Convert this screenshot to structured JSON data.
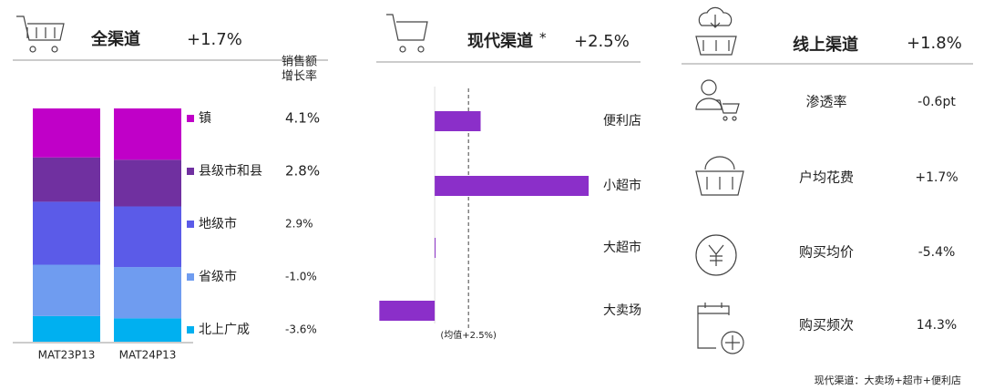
{
  "chart_data": [
    {
      "type": "stacked-bar",
      "title": "全渠道",
      "title_value": "+1.7%",
      "categories": [
        "MAT23P13",
        "MAT24P13"
      ],
      "series": [
        {
          "name": "镇",
          "color": "#c000c8",
          "values": [
            21,
            22
          ]
        },
        {
          "name": "县级市和县",
          "color": "#7030a0",
          "values": [
            19,
            20
          ]
        },
        {
          "name": "地级市",
          "color": "#5b5be8",
          "values": [
            27,
            26
          ]
        },
        {
          "name": "省级市",
          "color": "#6f9cf0",
          "values": [
            22,
            22
          ]
        },
        {
          "name": "北上广成",
          "color": "#00b0f0",
          "values": [
            11,
            10
          ]
        }
      ],
      "ylim": [
        0,
        100
      ],
      "growth": {
        "header": [
          "销售额",
          "增长率"
        ],
        "values": [
          4.1,
          2.8,
          2.9,
          -1.0,
          -3.6
        ],
        "value_labels": [
          "4.1%",
          "2.8%",
          "2.9%",
          "-1.0%",
          "-3.6%"
        ]
      }
    },
    {
      "type": "barh",
      "title": "现代渠道",
      "title_note": "*",
      "title_value": "+2.5%",
      "categories": [
        "便利店",
        "小超市",
        "大超市",
        "大卖场"
      ],
      "values": [
        3.4,
        11.4,
        0,
        -4.1
      ],
      "color": "#8b2fc9",
      "xlim": [
        -5,
        12
      ],
      "reference": {
        "value": 2.5,
        "label": "(均值+2.5%)"
      }
    }
  ],
  "online": {
    "title": "线上渠道",
    "value": "+1.8%",
    "rows": [
      {
        "label": "渗透率",
        "value": "-0.6pt"
      },
      {
        "label": "户均花费",
        "value": "+1.7%"
      },
      {
        "label": "购买均价",
        "value": "-5.4%"
      },
      {
        "label": "购买频次",
        "value": "14.3%"
      }
    ]
  },
  "footnote": "现代渠道：大卖场+超市+便利店"
}
